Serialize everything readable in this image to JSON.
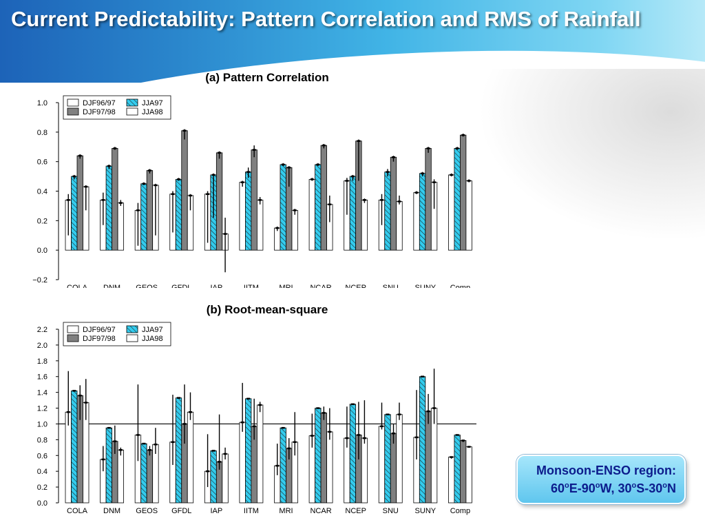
{
  "slide": {
    "title": "Current Predictability: Pattern Correlation and RMS of Rainfall",
    "panel_a_title": "(a) Pattern Correlation",
    "panel_b_title": "(b) Root-mean-square",
    "region_line1": "Monsoon-ENSO region:",
    "region_line2": "60oE-90oW, 30oS-30oN"
  },
  "colors": {
    "djf9697": "#ffffff",
    "jja97": "#33ccee",
    "djf9798": "#808080",
    "jja98": "#ffffff"
  },
  "chart_data": [
    {
      "type": "bar",
      "title": "(a) Pattern Correlation",
      "categories": [
        "COLA",
        "DNM",
        "GEOS",
        "GFDL",
        "IAP",
        "IITM",
        "MRI",
        "NCAR",
        "NCEP",
        "SNU",
        "SUNY",
        "Comp"
      ],
      "ylim": [
        -0.2,
        1.0
      ],
      "yticks": [
        "1.0",
        "0.8",
        "0.6",
        "0.4",
        "0.2",
        "0.0",
        "−0.2"
      ],
      "ytick_values": [
        1.0,
        0.8,
        0.6,
        0.4,
        0.2,
        0.0,
        -0.2
      ],
      "legend": [
        "DJF96/97",
        "JJA97",
        "DJF97/98",
        "JJA98"
      ],
      "legend_position": "top-left",
      "series": [
        {
          "name": "DJF96/97",
          "style": "white",
          "values": [
            0.34,
            0.34,
            0.27,
            0.38,
            0.38,
            0.46,
            0.15,
            0.48,
            0.47,
            0.34,
            0.39,
            0.51
          ],
          "err": [
            [
              0.1,
              0.38
            ],
            [
              0.17,
              0.39
            ],
            [
              0.03,
              0.32
            ],
            [
              0.12,
              0.4
            ],
            [
              0.05,
              0.4
            ],
            [
              0.43,
              0.47
            ],
            [
              0.13,
              0.16
            ],
            [
              0.47,
              0.49
            ],
            [
              0.24,
              0.49
            ],
            [
              0.17,
              0.38
            ],
            [
              0.38,
              0.4
            ],
            [
              0.5,
              0.52
            ]
          ]
        },
        {
          "name": "JJA97",
          "style": "hatch",
          "values": [
            0.5,
            0.57,
            0.45,
            0.48,
            0.51,
            0.53,
            0.58,
            0.58,
            0.5,
            0.53,
            0.52,
            0.69
          ],
          "err": [
            [
              0.48,
              0.51
            ],
            [
              0.55,
              0.58
            ],
            [
              0.44,
              0.46
            ],
            [
              0.47,
              0.49
            ],
            [
              0.22,
              0.52
            ],
            [
              0.49,
              0.56
            ],
            [
              0.57,
              0.59
            ],
            [
              0.57,
              0.59
            ],
            [
              0.47,
              0.51
            ],
            [
              0.5,
              0.55
            ],
            [
              0.5,
              0.53
            ],
            [
              0.68,
              0.7
            ]
          ]
        },
        {
          "name": "DJF97/98",
          "style": "gray",
          "values": [
            0.64,
            0.69,
            0.54,
            0.81,
            0.66,
            0.68,
            0.56,
            0.71,
            0.74,
            0.63,
            0.69,
            0.78
          ],
          "err": [
            [
              0.62,
              0.65
            ],
            [
              0.68,
              0.7
            ],
            [
              0.52,
              0.55
            ],
            [
              0.75,
              0.82
            ],
            [
              0.62,
              0.67
            ],
            [
              0.63,
              0.71
            ],
            [
              0.43,
              0.57
            ],
            [
              0.69,
              0.72
            ],
            [
              0.47,
              0.75
            ],
            [
              0.6,
              0.64
            ],
            [
              0.66,
              0.7
            ],
            [
              0.77,
              0.79
            ]
          ]
        },
        {
          "name": "JJA98",
          "style": "white",
          "values": [
            0.43,
            0.32,
            0.44,
            0.37,
            0.11,
            0.34,
            0.27,
            0.31,
            0.34,
            0.33,
            0.46,
            0.47
          ],
          "err": [
            [
              0.27,
              0.44
            ],
            [
              0.3,
              0.34
            ],
            [
              0.1,
              0.45
            ],
            [
              0.27,
              0.38
            ],
            [
              -0.15,
              0.22
            ],
            [
              0.31,
              0.36
            ],
            [
              0.24,
              0.28
            ],
            [
              0.19,
              0.37
            ],
            [
              0.32,
              0.35
            ],
            [
              0.31,
              0.37
            ],
            [
              0.28,
              0.48
            ],
            [
              0.46,
              0.48
            ]
          ]
        }
      ]
    },
    {
      "type": "bar",
      "title": "(b) Root-mean-square",
      "categories": [
        "COLA",
        "DNM",
        "GEOS",
        "GFDL",
        "IAP",
        "IITM",
        "MRI",
        "NCAR",
        "NCEP",
        "SNU",
        "SUNY",
        "Comp"
      ],
      "ylim": [
        0.0,
        2.2
      ],
      "yticks": [
        "2.2",
        "2.0",
        "1.8",
        "1.6",
        "1.4",
        "1.2",
        "1.0",
        "0.8",
        "0.6",
        "0.4",
        "0.2",
        "0.0"
      ],
      "ytick_values": [
        2.2,
        2.0,
        1.8,
        1.6,
        1.4,
        1.2,
        1.0,
        0.8,
        0.6,
        0.4,
        0.2,
        0.0
      ],
      "reference_line": 1.0,
      "legend": [
        "DJF96/97",
        "JJA97",
        "DJF97/98",
        "JJA98"
      ],
      "legend_position": "top-left",
      "series": [
        {
          "name": "DJF96/97",
          "style": "white",
          "values": [
            1.15,
            0.55,
            0.86,
            0.77,
            0.4,
            1.02,
            0.47,
            0.85,
            0.82,
            0.97,
            0.83,
            0.58
          ],
          "err": [
            [
              0.98,
              1.67
            ],
            [
              0.4,
              0.72
            ],
            [
              0.53,
              1.5
            ],
            [
              0.48,
              1.37
            ],
            [
              0.2,
              0.87
            ],
            [
              0.9,
              1.52
            ],
            [
              0.35,
              0.75
            ],
            [
              0.7,
              1.13
            ],
            [
              0.7,
              1.22
            ],
            [
              0.93,
              1.27
            ],
            [
              0.55,
              1.43
            ],
            [
              0.56,
              0.59
            ]
          ]
        },
        {
          "name": "JJA97",
          "style": "hatch",
          "values": [
            1.42,
            0.95,
            0.75,
            1.33,
            0.66,
            1.32,
            0.95,
            1.2,
            1.25,
            1.12,
            1.6,
            0.86
          ]
        },
        {
          "name": "DJF97/98",
          "style": "gray",
          "values": [
            1.36,
            0.78,
            0.67,
            1.0,
            0.52,
            0.97,
            0.69,
            1.14,
            0.86,
            0.88,
            1.16,
            0.79
          ],
          "err": [
            [
              1.05,
              1.49
            ],
            [
              0.62,
              0.98
            ],
            [
              0.6,
              0.72
            ],
            [
              0.75,
              1.5
            ],
            [
              0.42,
              1.12
            ],
            [
              0.8,
              1.32
            ],
            [
              0.55,
              0.82
            ],
            [
              1.05,
              1.22
            ],
            [
              0.55,
              1.28
            ],
            [
              0.75,
              1.0
            ],
            [
              1.0,
              1.38
            ],
            [
              0.77,
              0.8
            ]
          ]
        },
        {
          "name": "JJA98",
          "style": "white",
          "values": [
            1.27,
            0.67,
            0.74,
            1.15,
            0.62,
            1.24,
            0.77,
            0.9,
            0.82,
            1.12,
            1.2,
            0.71
          ],
          "err": [
            [
              1.05,
              1.57
            ],
            [
              0.6,
              0.7
            ],
            [
              0.62,
              0.95
            ],
            [
              1.05,
              1.4
            ],
            [
              0.55,
              0.7
            ],
            [
              1.15,
              1.28
            ],
            [
              0.6,
              1.15
            ],
            [
              0.8,
              1.2
            ],
            [
              0.75,
              1.3
            ],
            [
              1.05,
              1.27
            ],
            [
              1.0,
              1.7
            ],
            [
              0.7,
              0.72
            ]
          ]
        }
      ]
    }
  ]
}
